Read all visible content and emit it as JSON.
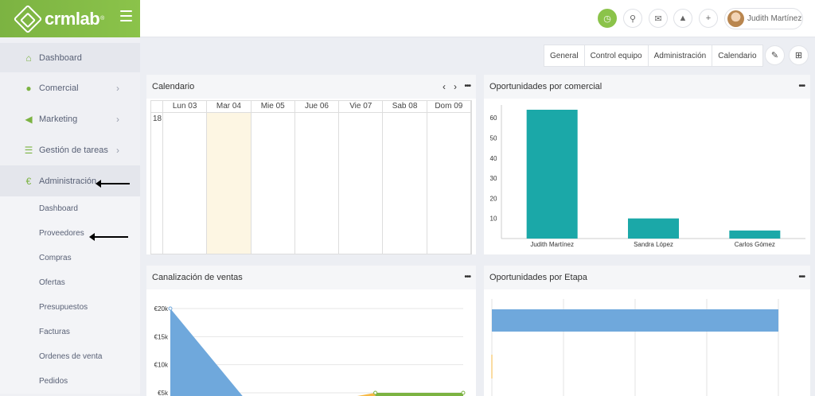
{
  "brand": {
    "name": "crmlab",
    "reg": "®"
  },
  "sidebar": {
    "items": [
      {
        "label": "Dashboard",
        "icon": "home-icon"
      },
      {
        "label": "Comercial",
        "icon": "user-icon"
      },
      {
        "label": "Marketing",
        "icon": "megaphone-icon"
      },
      {
        "label": "Gestión de tareas",
        "icon": "task-list-icon"
      },
      {
        "label": "Administración",
        "icon": "euro-icon"
      }
    ],
    "sub_items": [
      "Dashboard",
      "Proveedores",
      "Compras",
      "Ofertas",
      "Presupuestos",
      "Facturas",
      "Ordenes de venta",
      "Pedidos"
    ]
  },
  "topbar": {
    "user_name": "Judith Martínez"
  },
  "tabs": [
    "General",
    "Control equipo",
    "Administración",
    "Calendario"
  ],
  "calendar": {
    "title": "Calendario",
    "days": [
      "Lun 03",
      "Mar 04",
      "Mie 05",
      "Jue 06",
      "Vie 07",
      "Sab 08",
      "Dom 09"
    ],
    "hour": "18"
  },
  "oportunidades_comercial": {
    "title": "Oportunidades por comercial",
    "chart_data": {
      "type": "bar",
      "categories": [
        "Judith Martínez",
        "Sandra López",
        "Carlos Gómez"
      ],
      "values": [
        64,
        10,
        4
      ],
      "yticks": [
        10,
        20,
        30,
        40,
        50,
        60
      ],
      "ylim": [
        0,
        64
      ],
      "color": "#1ba8a8"
    }
  },
  "canalizacion": {
    "title": "Canalización de ventas",
    "chart_data": {
      "type": "area",
      "yticks": [
        "€5k",
        "€10k",
        "€15k",
        "€20k"
      ],
      "ylim": [
        5000,
        20000
      ],
      "series": [
        {
          "color": "#6fa8dc",
          "points": [
            [
              0,
              20000
            ],
            [
              0.26,
              5000
            ]
          ]
        },
        {
          "color": "#f6b945",
          "points": [
            [
              0.6,
              5000
            ],
            [
              0.7,
              5000
            ]
          ]
        },
        {
          "color": "#7cb342",
          "points": [
            [
              0.7,
              5000
            ],
            [
              1.0,
              5000
            ]
          ]
        }
      ]
    }
  },
  "oportunidades_etapa": {
    "title": "Oportunidades por Etapa",
    "chart_data": {
      "type": "bar",
      "orientation": "horizontal",
      "values": [
        100
      ],
      "color": "#6fa8dc"
    }
  }
}
